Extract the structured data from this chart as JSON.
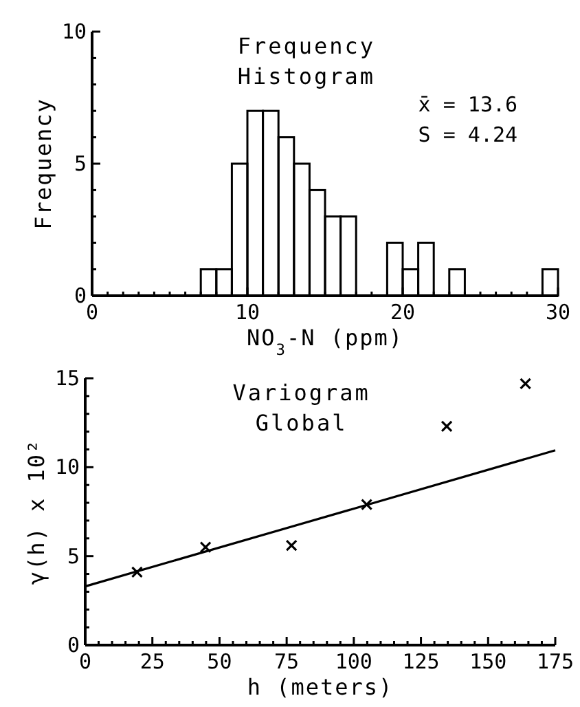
{
  "chart_data": [
    {
      "type": "histogram",
      "title": "Frequency Histogram",
      "xlabel": "NO$_{3}$-N (ppm)",
      "ylabel": "Frequency",
      "bins": [
        7,
        8,
        9,
        10,
        11,
        12,
        13,
        14,
        15,
        16,
        17,
        18,
        19,
        20,
        21,
        22,
        23,
        24,
        25,
        26,
        27,
        28,
        29,
        30
      ],
      "values": [
        1,
        1,
        5,
        7,
        7,
        6,
        5,
        4,
        3,
        3,
        0,
        0,
        2,
        1,
        2,
        0,
        1,
        0,
        0,
        0,
        0,
        0,
        1
      ],
      "color": "#000000",
      "annotations": [
        "x̄ = 13.6",
        "S = 4.24"
      ],
      "xlim": [
        0,
        30
      ],
      "ylim": [
        0,
        10
      ],
      "xticks": [
        0,
        {
          "value": 1,
          "label": null
        },
        {
          "value": 2,
          "label": null
        },
        {
          "value": 3,
          "label": null
        },
        {
          "value": 4,
          "label": null
        },
        {
          "value": 5,
          "label": null
        },
        {
          "value": 6,
          "label": null
        },
        {
          "value": 7,
          "label": null
        },
        {
          "value": 8,
          "label": null
        },
        {
          "value": 9,
          "label": null
        },
        10,
        {
          "value": 11,
          "label": null
        },
        {
          "value": 12,
          "label": null
        },
        {
          "value": 13,
          "label": null
        },
        {
          "value": 14,
          "label": null
        },
        {
          "value": 15,
          "label": null
        },
        {
          "value": 16,
          "label": null
        },
        {
          "value": 17,
          "label": null
        },
        {
          "value": 18,
          "label": null
        },
        {
          "value": 19,
          "label": null
        },
        20,
        {
          "value": 21,
          "label": null
        },
        {
          "value": 22,
          "label": null
        },
        {
          "value": 23,
          "label": null
        },
        {
          "value": 24,
          "label": null
        },
        {
          "value": 25,
          "label": null
        },
        {
          "value": 26,
          "label": null
        },
        {
          "value": 27,
          "label": null
        },
        {
          "value": 28,
          "label": null
        },
        {
          "value": 29,
          "label": null
        },
        30
      ],
      "yticks": [
        0,
        {
          "value": 1,
          "label": null
        },
        {
          "value": 2,
          "label": null
        },
        {
          "value": 3,
          "label": null
        },
        {
          "value": 4,
          "label": null
        },
        5,
        {
          "value": 6,
          "label": null
        },
        {
          "value": 7,
          "label": null
        },
        {
          "value": 8,
          "label": null
        },
        {
          "value": 9,
          "label": null
        },
        10
      ],
      "grid": false
    },
    {
      "type": "scatter",
      "title": "Variogram",
      "subtitle": "Global",
      "xlabel": "h (meters)",
      "ylabel": "γ(h) x 10²",
      "series": [
        {
          "type": "scatter",
          "color": "#000000",
          "marker": "cross",
          "x": [
            19.3,
            44.8,
            76.8,
            104.8,
            134.6,
            163.9
          ],
          "values": [
            4.1,
            5.5,
            5.6,
            7.9,
            12.3,
            14.7
          ]
        },
        {
          "type": "line",
          "color": "#000000",
          "marker": "none",
          "line_style": "solid",
          "x": [
            0,
            175
          ],
          "values": [
            3.3,
            10.95
          ]
        }
      ],
      "xlim": [
        0,
        175
      ],
      "ylim": [
        0,
        15
      ],
      "xticks": [
        0,
        {
          "value": 5,
          "label": null
        },
        {
          "value": 10,
          "label": null
        },
        {
          "value": 15,
          "label": null
        },
        {
          "value": 20,
          "label": null
        },
        25,
        {
          "value": 30,
          "label": null
        },
        {
          "value": 35,
          "label": null
        },
        {
          "value": 40,
          "label": null
        },
        {
          "value": 45,
          "label": null
        },
        50,
        {
          "value": 55,
          "label": null
        },
        {
          "value": 60,
          "label": null
        },
        {
          "value": 65,
          "label": null
        },
        {
          "value": 70,
          "label": null
        },
        75,
        {
          "value": 80,
          "label": null
        },
        {
          "value": 85,
          "label": null
        },
        {
          "value": 90,
          "label": null
        },
        {
          "value": 95,
          "label": null
        },
        100,
        {
          "value": 105,
          "label": null
        },
        {
          "value": 110,
          "label": null
        },
        {
          "value": 115,
          "label": null
        },
        {
          "value": 120,
          "label": null
        },
        125,
        {
          "value": 130,
          "label": null
        },
        {
          "value": 135,
          "label": null
        },
        {
          "value": 140,
          "label": null
        },
        {
          "value": 145,
          "label": null
        },
        150,
        {
          "value": 155,
          "label": null
        },
        {
          "value": 160,
          "label": null
        },
        {
          "value": 165,
          "label": null
        },
        {
          "value": 170,
          "label": null
        },
        175
      ],
      "yticks": [
        0,
        {
          "value": 1,
          "label": null
        },
        {
          "value": 2,
          "label": null
        },
        {
          "value": 3,
          "label": null
        },
        {
          "value": 4,
          "label": null
        },
        5,
        {
          "value": 6,
          "label": null
        },
        {
          "value": 7,
          "label": null
        },
        {
          "value": 8,
          "label": null
        },
        {
          "value": 9,
          "label": null
        },
        10,
        {
          "value": 11,
          "label": null
        },
        {
          "value": 12,
          "label": null
        },
        {
          "value": 13,
          "label": null
        },
        {
          "value": 14,
          "label": null
        },
        15
      ],
      "grid": false
    }
  ]
}
